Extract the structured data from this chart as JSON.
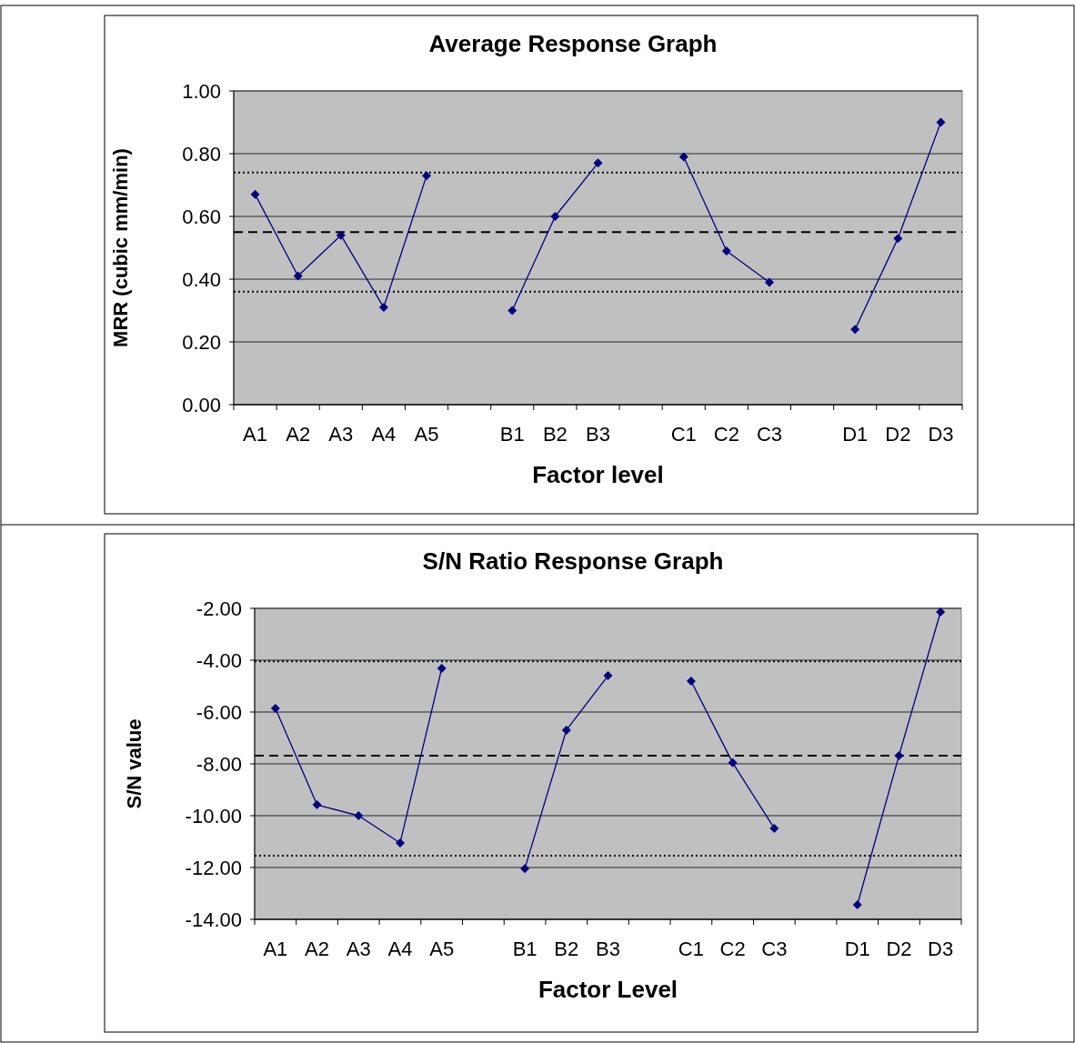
{
  "chart_data": [
    {
      "type": "line",
      "title": "Average Response Graph",
      "xlabel": "Factor level",
      "ylabel": "MRR (cubic mm/min)",
      "categories": [
        "A1",
        "A2",
        "A3",
        "A4",
        "A5",
        null,
        "B1",
        "B2",
        "B3",
        null,
        "C1",
        "C2",
        "C3",
        null,
        "D1",
        "D2",
        "D3"
      ],
      "series": [
        {
          "color": "#000080",
          "values": [
            0.67,
            0.41,
            0.54,
            0.31,
            0.73,
            null,
            0.3,
            0.6,
            0.77,
            null,
            0.79,
            0.49,
            0.39,
            null,
            0.24,
            0.53,
            0.9
          ]
        }
      ],
      "ylim": [
        0,
        1
      ],
      "yticks": [
        {
          "value": 0,
          "label": "0.00"
        },
        {
          "value": 0.2,
          "label": "0.20"
        },
        {
          "value": 0.4,
          "label": "0.40"
        },
        {
          "value": 0.6,
          "label": "0.60"
        },
        {
          "value": 0.8,
          "label": "0.80"
        },
        {
          "value": 1,
          "label": "1.00"
        }
      ],
      "ref_lines": [
        {
          "axis": "y",
          "value": 0.74,
          "color": "#000000",
          "line_style": "dotted"
        },
        {
          "axis": "y",
          "value": 0.55,
          "color": "#000000",
          "line_style": "dashed"
        },
        {
          "axis": "y",
          "value": 0.36,
          "color": "#000000",
          "line_style": "dotted"
        }
      ],
      "grid": "y",
      "marker": "diamond",
      "line_style": "solid"
    },
    {
      "type": "line",
      "title": "S/N Ratio Response Graph",
      "xlabel": "Factor Level",
      "ylabel": "S/N value",
      "categories": [
        "A1",
        "A2",
        "A3",
        "A4",
        "A5",
        null,
        "B1",
        "B2",
        "B3",
        null,
        "C1",
        "C2",
        "C3",
        null,
        "D1",
        "D2",
        "D3"
      ],
      "series": [
        {
          "color": "#000080",
          "values": [
            -5.86,
            -9.58,
            -10.0,
            -11.05,
            -4.32,
            null,
            -12.04,
            -6.7,
            -4.6,
            null,
            -4.81,
            -7.96,
            -10.49,
            null,
            -13.44,
            -7.68,
            -2.14
          ]
        }
      ],
      "ylim": [
        -14,
        -2
      ],
      "yticks": [
        {
          "value": -14,
          "label": "-14.00"
        },
        {
          "value": -12,
          "label": "-12.00"
        },
        {
          "value": -10,
          "label": "-10.00"
        },
        {
          "value": -8,
          "label": "-8.00"
        },
        {
          "value": -6,
          "label": "-6.00"
        },
        {
          "value": -4,
          "label": "-4.00"
        },
        {
          "value": -2,
          "label": "-2.00"
        }
      ],
      "ref_lines": [
        {
          "axis": "y",
          "value": -4.04,
          "color": "#000000",
          "line_style": "dotted"
        },
        {
          "axis": "y",
          "value": -7.68,
          "color": "#000000",
          "line_style": "dashed"
        },
        {
          "axis": "y",
          "value": -11.54,
          "color": "#000000",
          "line_style": "dotted"
        }
      ],
      "grid": "y",
      "marker": "diamond",
      "line_style": "solid"
    }
  ]
}
